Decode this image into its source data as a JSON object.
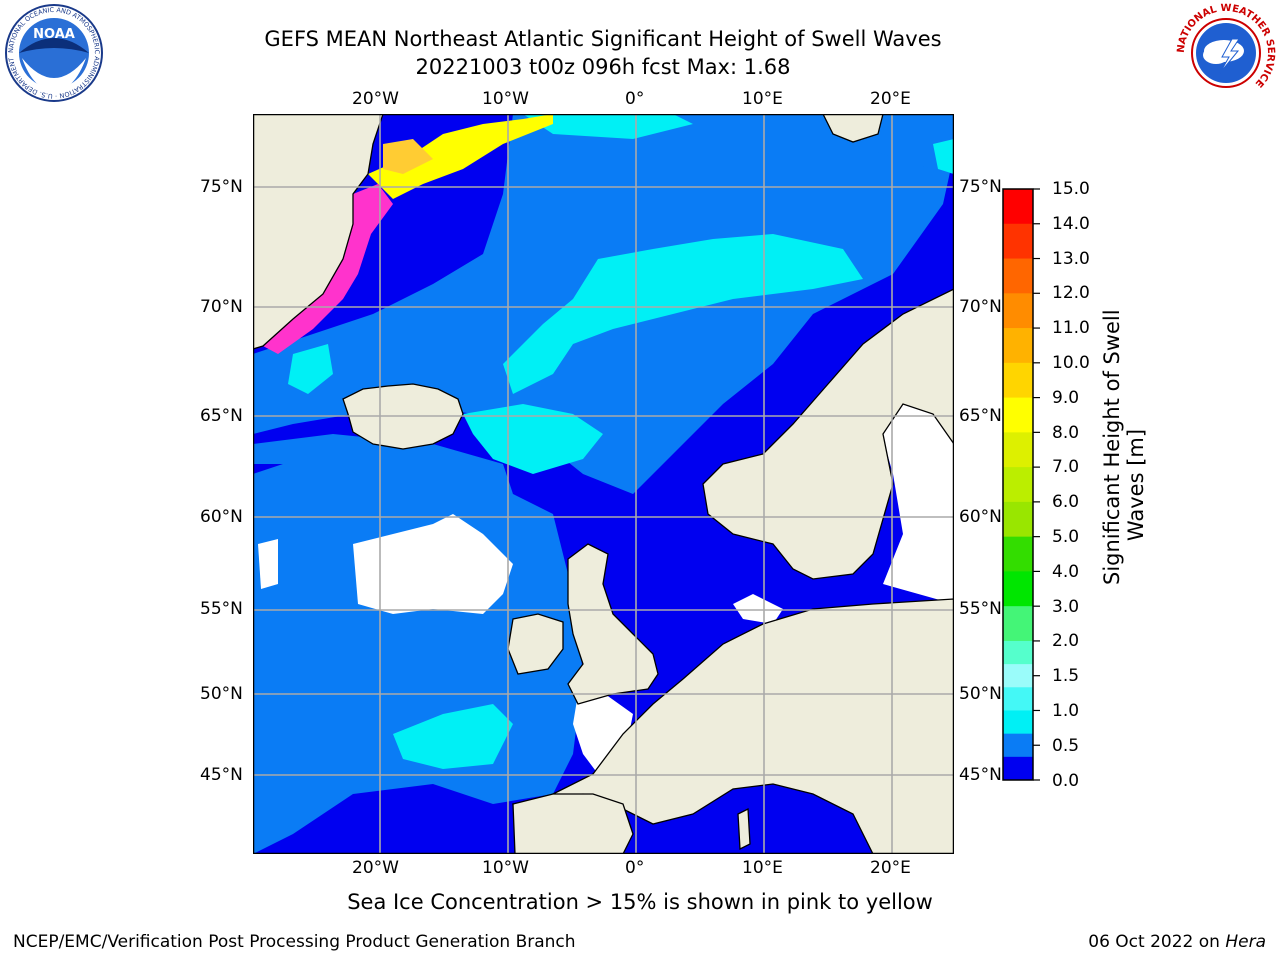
{
  "header": {
    "title_line1": "GEFS MEAN Northeast Atlantic Significant Height of Swell Waves",
    "title_line2": "20221003 t00z 096h fcst   Max: 1.68"
  },
  "logos": {
    "left": "NOAA",
    "left_ring_text": "NATIONAL OCEANIC AND ATMOSPHERIC ADMINISTRATION · U.S. DEPARTMENT OF COMMERCE",
    "right_ring_text": "NATIONAL WEATHER SERVICE"
  },
  "map": {
    "lon_labels": [
      "20°W",
      "10°W",
      "0°",
      "10°E",
      "20°E"
    ],
    "lat_labels": [
      "75°N",
      "70°N",
      "65°N",
      "60°N",
      "55°N",
      "50°N",
      "45°N"
    ],
    "colors": {
      "land": "#eeeddc",
      "ocean_low": "#0000f0",
      "ocean_mid": "#0a7cf5",
      "ocean_high": "#00f0f5",
      "ice_pink": "#ff33cc",
      "ice_yellow": "#ffff00",
      "gridline": "#aaaaaa"
    },
    "max_value": 1.68
  },
  "colorbar": {
    "label_line1": "Significant Height of Swell",
    "label_line2": "Waves [m]",
    "ticks": [
      "15.0",
      "14.0",
      "13.0",
      "12.0",
      "11.0",
      "10.0",
      "9.0",
      "8.0",
      "7.0",
      "6.0",
      "5.0",
      "4.0",
      "3.0",
      "2.0",
      "1.5",
      "1.0",
      "0.5",
      "0.0"
    ],
    "colors": [
      "#ff0000",
      "#ff3300",
      "#ff6600",
      "#ff8c00",
      "#ffb200",
      "#ffd500",
      "#ffff00",
      "#ddf000",
      "#bbee00",
      "#99e600",
      "#33dd00",
      "#00e600",
      "#44f577",
      "#55ffcc",
      "#9afcfa",
      "#44f8f6",
      "#00f0f5",
      "#0a7cf5",
      "#0000f0"
    ]
  },
  "notes": {
    "sea_ice": "Sea Ice Concentration > 15% is shown in pink to yellow"
  },
  "footer": {
    "left": "NCEP/EMC/Verification Post Processing Product Generation Branch",
    "right_date": "06 Oct 2022 on ",
    "right_host": "Hera"
  }
}
